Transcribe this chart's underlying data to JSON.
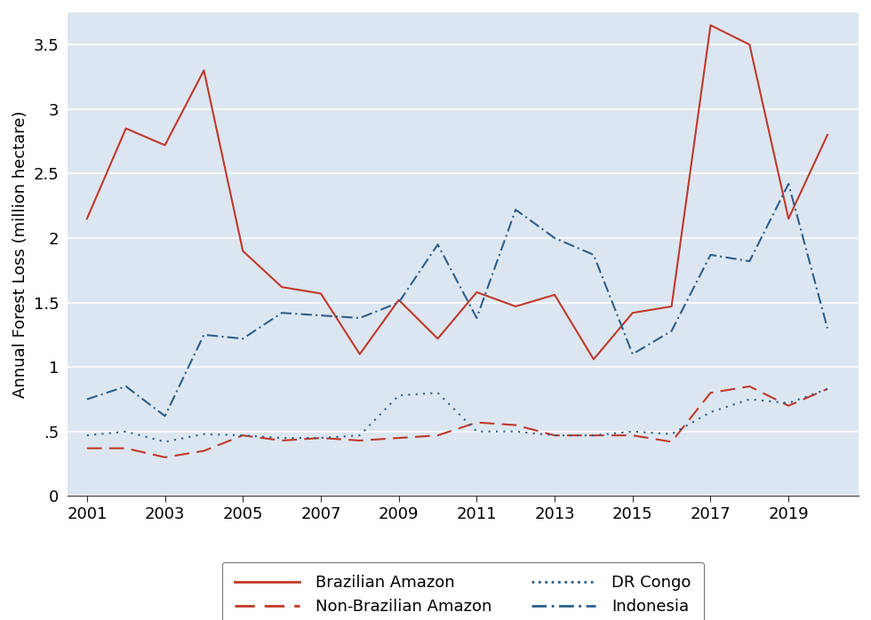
{
  "years": [
    2001,
    2002,
    2003,
    2004,
    2005,
    2006,
    2007,
    2008,
    2009,
    2010,
    2011,
    2012,
    2013,
    2014,
    2015,
    2016,
    2017,
    2018,
    2019,
    2020
  ],
  "brazilian_amazon": [
    2.15,
    2.85,
    2.72,
    3.3,
    1.9,
    1.62,
    1.57,
    1.1,
    1.52,
    1.22,
    1.58,
    1.47,
    1.56,
    1.06,
    1.42,
    1.47,
    3.65,
    3.5,
    2.15,
    2.8
  ],
  "non_brazilian_amazon": [
    0.37,
    0.37,
    0.3,
    0.35,
    0.47,
    0.43,
    0.45,
    0.43,
    0.45,
    0.47,
    0.57,
    0.55,
    0.47,
    0.47,
    0.47,
    0.42,
    0.8,
    0.85,
    0.7,
    0.83
  ],
  "dr_congo": [
    0.47,
    0.5,
    0.42,
    0.48,
    0.47,
    0.45,
    0.45,
    0.47,
    0.78,
    0.8,
    0.5,
    0.5,
    0.47,
    0.47,
    0.5,
    0.48,
    0.65,
    0.75,
    0.72,
    0.83
  ],
  "indonesia": [
    0.75,
    0.85,
    0.62,
    1.25,
    1.22,
    1.42,
    1.4,
    1.38,
    1.5,
    1.95,
    1.38,
    2.22,
    2.0,
    1.87,
    1.1,
    1.28,
    1.87,
    1.82,
    2.42,
    1.3
  ],
  "ylabel": "Annual Forest Loss (million hectare)",
  "ylim": [
    0,
    3.75
  ],
  "yticks": [
    0,
    0.5,
    1.0,
    1.5,
    2.0,
    2.5,
    3.0,
    3.5
  ],
  "ytick_labels": [
    "0",
    ".5",
    "1",
    "1.5",
    "2",
    "2.5",
    "3",
    "3.5"
  ],
  "xticks": [
    2001,
    2003,
    2005,
    2007,
    2009,
    2011,
    2013,
    2015,
    2017,
    2019
  ],
  "xlim_left": 2000.5,
  "xlim_right": 2020.8,
  "background_color": "#ffffff",
  "plot_bg_color": "#dce6f0",
  "color_red": "#c0392b",
  "color_blue": "#2c5f8a",
  "grid_color": "#ffffff",
  "grid_linewidth": 1.2,
  "line_linewidth": 1.5,
  "legend_labels": [
    "Brazilian Amazon",
    "Non-Brazilian Amazon",
    "DR Congo",
    "Indonesia"
  ],
  "legend_fontsize": 13,
  "tick_fontsize": 13,
  "ylabel_fontsize": 13
}
